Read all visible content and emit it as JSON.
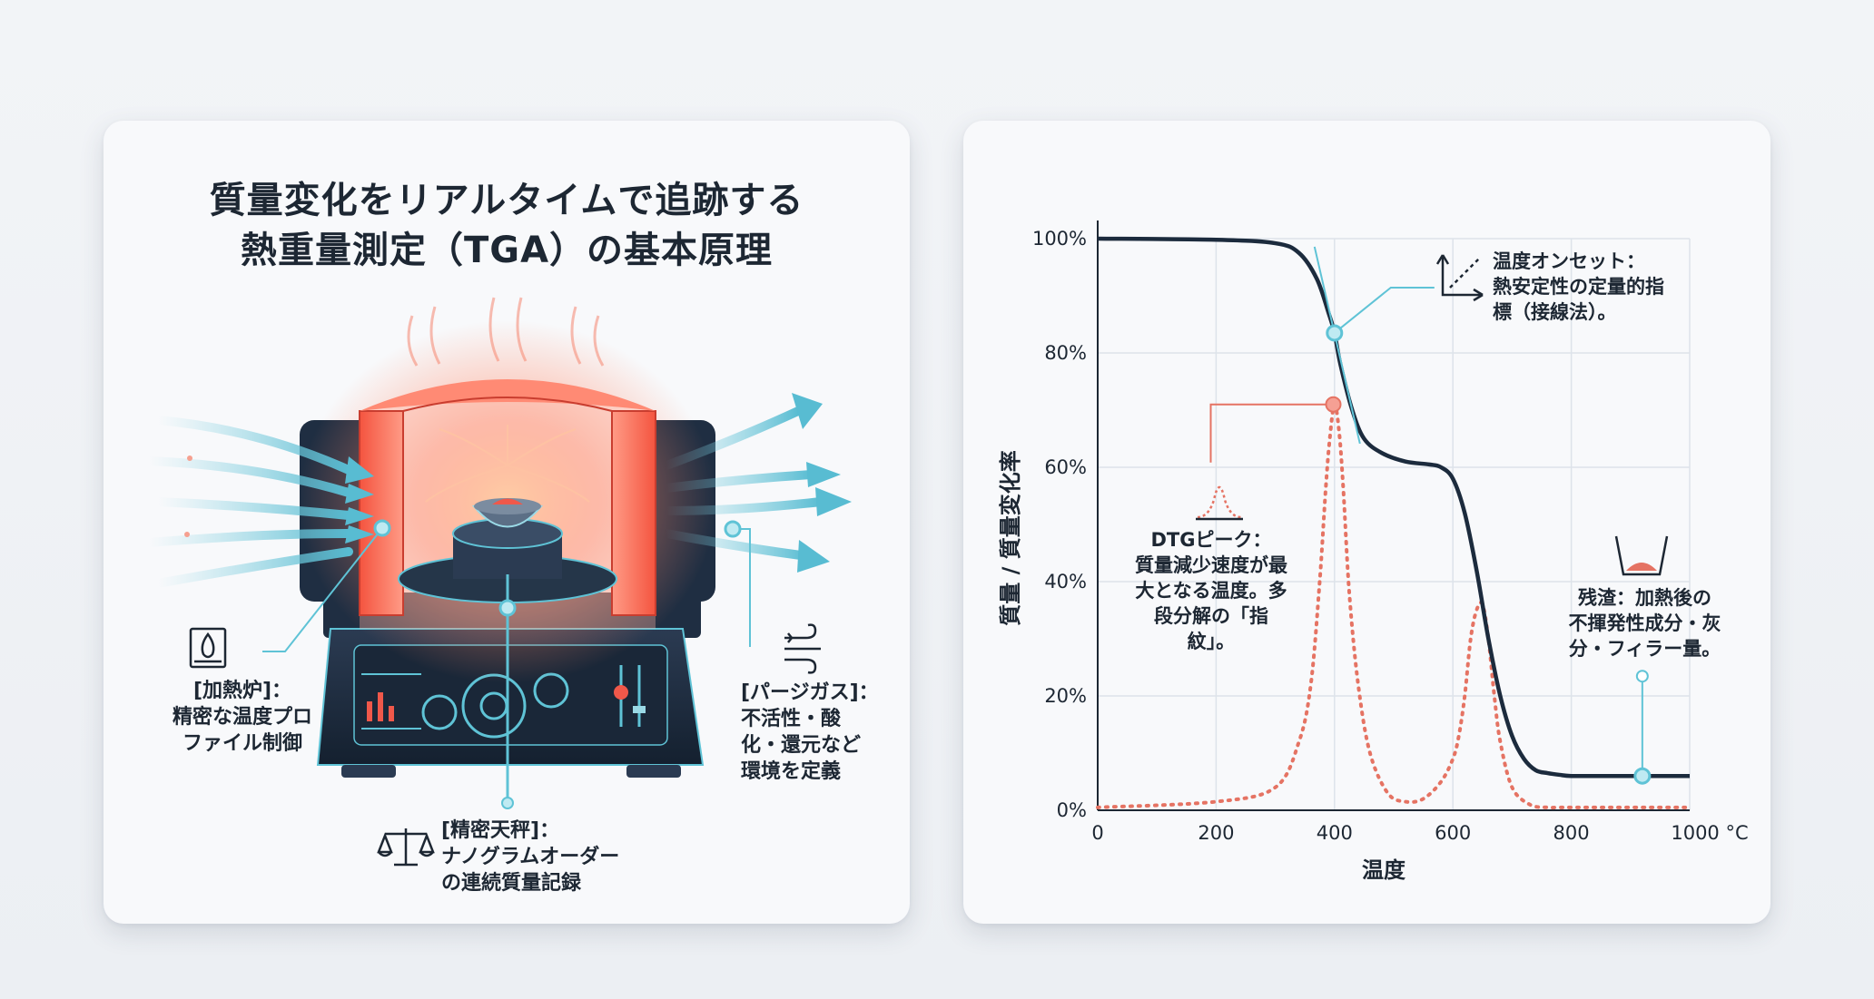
{
  "left": {
    "title_line1": "質量変化をリアルタイムで追跡する",
    "title_line2": "熱重量測定（TGA）の基本原理",
    "furnace_label": [
      "[加熱炉]：",
      "精密な温度プロ",
      "ファイル制御"
    ],
    "gas_label": [
      "[パージガス]：",
      "不活性・酸",
      "化・還元など",
      "環境を定義"
    ],
    "balance_label": [
      "[精密天秤]：",
      "ナノグラムオーダー",
      "の連続質量記録"
    ],
    "icons": [
      "flame-icon",
      "gas-flow-icon",
      "balance-scale-icon"
    ],
    "colors": {
      "heat": "#f0584a",
      "gas": "#5fc3d6",
      "base": "#1c2b3d"
    }
  },
  "chart_data": {
    "type": "line",
    "xlabel": "温度",
    "ylabel": "質量 / 質量変化率",
    "x_ticks": [
      "0",
      "200",
      "400",
      "600",
      "800",
      "1000 °C"
    ],
    "y_ticks": [
      "0%",
      "20%",
      "40%",
      "60%",
      "80%",
      "100%"
    ],
    "xlim": [
      0,
      1000
    ],
    "ylim": [
      0,
      100
    ],
    "grid": true,
    "series": [
      {
        "style": "solid",
        "color": "#1c2b3d",
        "x": [
          0,
          200,
          300,
          340,
          370,
          390,
          400,
          410,
          430,
          450,
          480,
          520,
          560,
          580,
          600,
          620,
          640,
          660,
          680,
          700,
          720,
          740,
          760,
          780,
          800,
          850,
          900,
          1000
        ],
        "y": [
          100,
          99.8,
          99.2,
          97.5,
          93,
          87,
          83.5,
          78,
          70,
          65,
          62.5,
          61,
          60.5,
          60,
          58,
          52,
          42,
          30,
          20,
          13,
          9,
          7,
          6.5,
          6.2,
          6,
          6,
          6,
          6
        ]
      },
      {
        "style": "dotted",
        "color": "#e57363",
        "x": [
          0,
          200,
          300,
          340,
          360,
          375,
          385,
          392,
          400,
          408,
          415,
          425,
          440,
          460,
          490,
          520,
          550,
          580,
          600,
          610,
          620,
          630,
          640,
          650,
          660,
          670,
          680,
          700,
          730,
          760,
          800,
          1000
        ],
        "y": [
          0.5,
          1.5,
          4,
          12,
          22,
          40,
          56,
          65,
          71,
          66,
          56,
          38,
          22,
          10,
          3,
          1.5,
          2,
          5,
          9,
          13,
          20,
          30,
          35,
          36,
          30,
          20,
          12,
          4,
          1,
          0.5,
          0.5,
          0.5
        ]
      }
    ],
    "annotations": {
      "onset": [
        "温度オンセット：",
        "熱安定性の定量的指",
        "標（接線法）。"
      ],
      "dtg": [
        "DTGピーク：",
        "質量減少速度が最",
        "大となる温度。多",
        "段分解の「指",
        "紋」。"
      ],
      "residue": [
        "残渣：加熱後の",
        "不揮発性成分・灰",
        "分・フィラー量。"
      ]
    },
    "points": {
      "onset": {
        "x": 400,
        "y": 83.5
      },
      "dtg_peak": {
        "x": 398,
        "y": 71
      },
      "residue": {
        "x": 920,
        "y": 6
      }
    },
    "colors": {
      "mass": "#1c2b3d",
      "dtg": "#e57363",
      "accent": "#5fc3d6"
    }
  }
}
